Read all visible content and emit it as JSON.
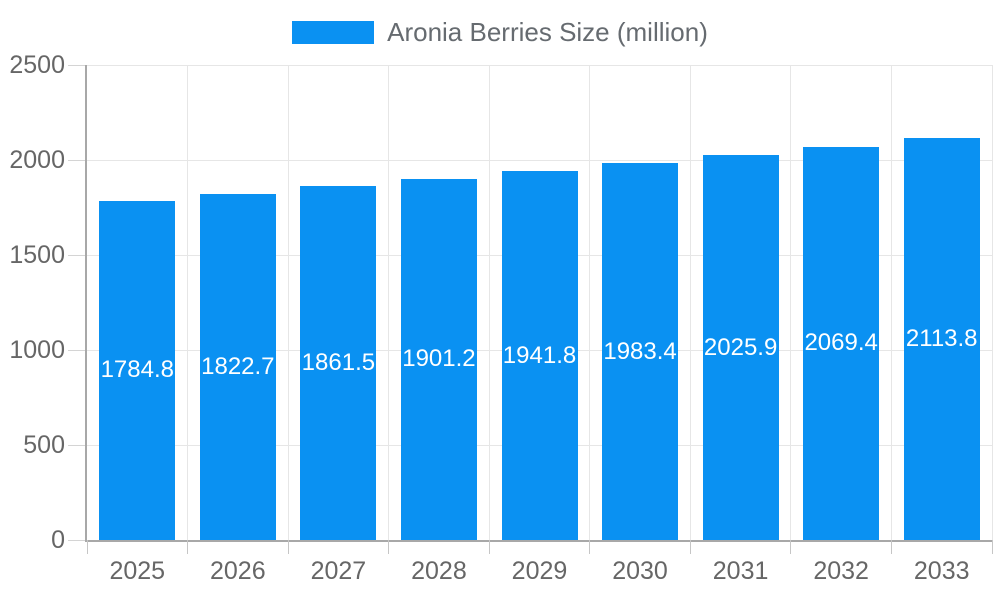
{
  "legend": {
    "items": [
      {
        "label": "Aronia Berries Size (million)"
      }
    ]
  },
  "chart_data": {
    "type": "bar",
    "title": "Aronia Berries Size (million)",
    "categories": [
      "2025",
      "2026",
      "2027",
      "2028",
      "2029",
      "2030",
      "2031",
      "2032",
      "2033"
    ],
    "series": [
      {
        "name": "Aronia Berries Size (million)",
        "color": "#0a91f2",
        "values": [
          1784.8,
          1822.7,
          1861.5,
          1901.2,
          1941.8,
          1983.4,
          2025.9,
          2069.4,
          2113.8
        ]
      }
    ],
    "value_labels": [
      "1784.8",
      "1822.7",
      "1861.5",
      "1901.2",
      "1941.8",
      "1983.4",
      "2025.9",
      "2069.4",
      "2113.8"
    ],
    "xlabel": "",
    "ylabel": "",
    "ylim": [
      0,
      2500
    ],
    "yticks": [
      0,
      500,
      1000,
      1500,
      2000,
      2500
    ],
    "grid": true,
    "legend_position": "top",
    "colors": {
      "bar": "#0a91f2",
      "grid": "#e6e6e6",
      "axis": "#a8a8a8",
      "tick": "#c6c6c6",
      "axis_text": "#666666",
      "bar_label_text": "#ffffff",
      "background": "#ffffff"
    }
  }
}
